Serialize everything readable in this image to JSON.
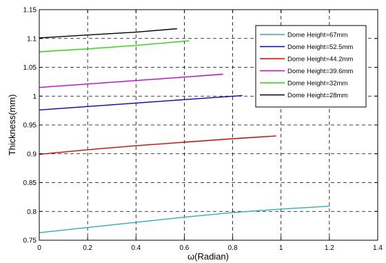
{
  "chart_data": {
    "type": "line",
    "title": "",
    "xlabel": "ω(Radian)",
    "ylabel": "Thickness(mm)",
    "xlim": [
      0,
      1.4
    ],
    "ylim": [
      0.75,
      1.15
    ],
    "xticks": [
      0,
      0.2,
      0.4,
      0.6,
      0.8,
      1,
      1.2,
      1.4
    ],
    "yticks": [
      0.75,
      0.8,
      0.85,
      0.9,
      0.95,
      1,
      1.05,
      1.1,
      1.15
    ],
    "xtick_labels": [
      "0",
      "0.2",
      "0.4",
      "0.6",
      "0.8",
      "1",
      "1.2",
      "1.4"
    ],
    "ytick_labels": [
      "0.75",
      "0.8",
      "0.85",
      "0.9",
      "0.95",
      "1",
      "1.05",
      "1.1",
      "1.15"
    ],
    "grid": true,
    "grid_style": "dashed",
    "legend_position": "top-right",
    "series": [
      {
        "name": "Dome Height=67mm",
        "color": "#2ab3b3",
        "x": [
          0,
          0.2,
          0.4,
          0.6,
          0.8,
          1.0,
          1.2
        ],
        "y": [
          0.763,
          0.772,
          0.781,
          0.79,
          0.798,
          0.804,
          0.809
        ]
      },
      {
        "name": "Dome Height=52.5mm",
        "color": "#0000dd",
        "x": [
          0,
          0.2,
          0.4,
          0.6,
          0.84
        ],
        "y": [
          0.976,
          0.982,
          0.988,
          0.994,
          1.001
        ]
      },
      {
        "name": "Dome Height=44.2mm",
        "color": "#dd0000",
        "x": [
          0,
          0.2,
          0.4,
          0.6,
          0.8,
          0.98
        ],
        "y": [
          0.899,
          0.907,
          0.914,
          0.92,
          0.926,
          0.931
        ]
      },
      {
        "name": "Dome Height=39.6mm",
        "color": "#cc00cc",
        "x": [
          0,
          0.2,
          0.4,
          0.6,
          0.76
        ],
        "y": [
          1.015,
          1.021,
          1.027,
          1.033,
          1.038
        ]
      },
      {
        "name": "Dome Height=32mm",
        "color": "#22dd00",
        "x": [
          0,
          0.2,
          0.4,
          0.62
        ],
        "y": [
          1.077,
          1.082,
          1.088,
          1.096
        ]
      },
      {
        "name": "Dome Height=28mm",
        "color": "#000000",
        "x": [
          0,
          0.2,
          0.4,
          0.57
        ],
        "y": [
          1.101,
          1.106,
          1.111,
          1.117
        ]
      }
    ]
  }
}
